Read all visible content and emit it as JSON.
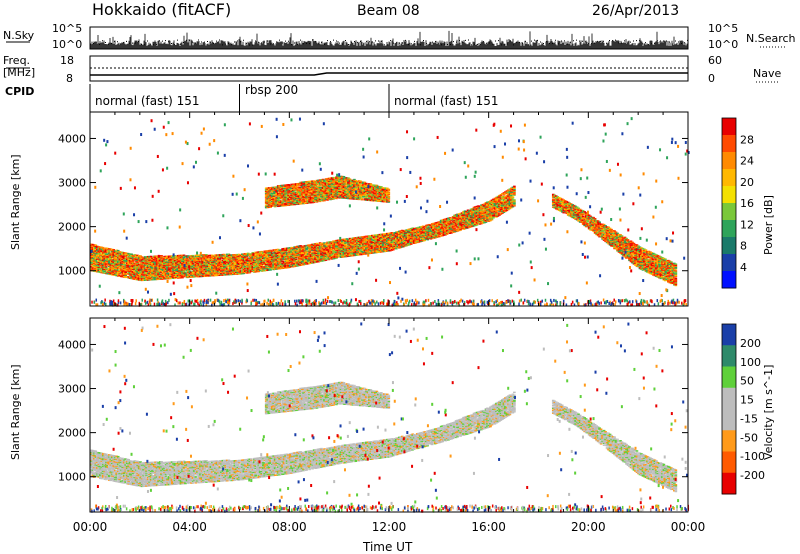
{
  "header": {
    "station": "Hokkaido (fitACF)",
    "beam": "Beam 08",
    "date": "26/Apr/2013"
  },
  "aux_labels": {
    "nsky": "N.Sky",
    "freq": "Freq.",
    "mhz": "[MHz]",
    "cpid": "CPID",
    "nsearch": "N.Search",
    "nave": "Nave",
    "nsky_ticks": [
      "10^5",
      "10^0"
    ],
    "freq_ticks": [
      "18",
      "8"
    ],
    "nave_ticks": [
      "60",
      "0"
    ]
  },
  "cpid_segments": [
    {
      "start": "00:00",
      "end": "06:00",
      "label": "normal (fast) 151"
    },
    {
      "start": "06:00",
      "end": "12:00",
      "label": "rbsp 200"
    },
    {
      "start": "12:00",
      "end": "24:00",
      "label": "normal (fast) 151"
    }
  ],
  "chart_data": [
    {
      "type": "heatmap",
      "panel": "power",
      "xlabel": "",
      "ylabel": "Slant Range [km]",
      "xlim": [
        0,
        24
      ],
      "ylim": [
        200,
        4600
      ],
      "x_ticks": [
        "00:00",
        "04:00",
        "08:00",
        "12:00",
        "16:00",
        "20:00",
        "00:00"
      ],
      "y_ticks": [
        1000,
        2000,
        3000,
        4000
      ],
      "colorbar": {
        "label": "Power [dB]",
        "ticks": [
          28,
          24,
          20,
          16,
          12,
          8,
          4
        ],
        "colors": [
          "#e80000",
          "#ff4a00",
          "#ff8a00",
          "#ffb800",
          "#f4e000",
          "#7ac83a",
          "#2ea45a",
          "#1a7a6a",
          "#1a3fa8",
          "#0010ff"
        ]
      },
      "echo_bands": [
        {
          "name": "main",
          "points": [
            [
              0,
              1300,
              600
            ],
            [
              2,
              1050,
              550
            ],
            [
              4,
              1100,
              500
            ],
            [
              6,
              1150,
              450
            ],
            [
              8,
              1300,
              450
            ],
            [
              10,
              1500,
              400
            ],
            [
              12,
              1650,
              400
            ],
            [
              13,
              1800,
              350
            ],
            [
              14,
              1950,
              350
            ],
            [
              15,
              2150,
              400
            ],
            [
              16,
              2350,
              450
            ],
            [
              17,
              2700,
              450
            ]
          ]
        },
        {
          "name": "upper-afternoon",
          "points": [
            [
              7,
              2650,
              450
            ],
            [
              9,
              2800,
              500
            ],
            [
              10,
              2900,
              500
            ],
            [
              11,
              2800,
              400
            ],
            [
              12,
              2700,
              300
            ]
          ]
        },
        {
          "name": "evening",
          "points": [
            [
              18.5,
              2600,
              300
            ],
            [
              19.5,
              2300,
              300
            ],
            [
              20.5,
              1900,
              350
            ],
            [
              22,
              1300,
              500
            ],
            [
              23.5,
              900,
              500
            ]
          ]
        }
      ]
    },
    {
      "type": "heatmap",
      "panel": "velocity",
      "xlabel": "Time UT",
      "ylabel": "Slant Range [km]",
      "xlim": [
        0,
        24
      ],
      "ylim": [
        200,
        4600
      ],
      "x_ticks": [
        "00:00",
        "04:00",
        "08:00",
        "12:00",
        "16:00",
        "20:00",
        "00:00"
      ],
      "y_ticks": [
        1000,
        2000,
        3000,
        4000
      ],
      "colorbar": {
        "label": "Velocity [m s^-1]",
        "ticks": [
          200,
          100,
          50,
          15,
          -15,
          -50,
          -100,
          -200
        ],
        "colors": [
          "#1a3fa8",
          "#2e8a6a",
          "#5fd03a",
          "#bdbdbd",
          "#bdbdbd",
          "#ff9a1a",
          "#ff5a00",
          "#e80000"
        ]
      },
      "echo_bands": [
        {
          "name": "main",
          "points": [
            [
              0,
              1300,
              600
            ],
            [
              2,
              1050,
              550
            ],
            [
              4,
              1100,
              500
            ],
            [
              6,
              1150,
              450
            ],
            [
              8,
              1300,
              450
            ],
            [
              10,
              1500,
              400
            ],
            [
              12,
              1650,
              400
            ],
            [
              13,
              1800,
              350
            ],
            [
              14,
              1950,
              350
            ],
            [
              15,
              2150,
              400
            ],
            [
              16,
              2350,
              450
            ],
            [
              17,
              2700,
              450
            ]
          ]
        },
        {
          "name": "upper-afternoon",
          "points": [
            [
              7,
              2650,
              450
            ],
            [
              9,
              2800,
              500
            ],
            [
              10,
              2900,
              500
            ],
            [
              11,
              2800,
              400
            ],
            [
              12,
              2700,
              300
            ]
          ]
        },
        {
          "name": "evening",
          "points": [
            [
              18.5,
              2600,
              300
            ],
            [
              19.5,
              2300,
              300
            ],
            [
              20.5,
              1900,
              350
            ],
            [
              22,
              1300,
              500
            ],
            [
              23.5,
              900,
              500
            ]
          ]
        }
      ]
    }
  ],
  "colors": {
    "axis": "#000000",
    "gray_scatter": "#bdbdbd"
  }
}
